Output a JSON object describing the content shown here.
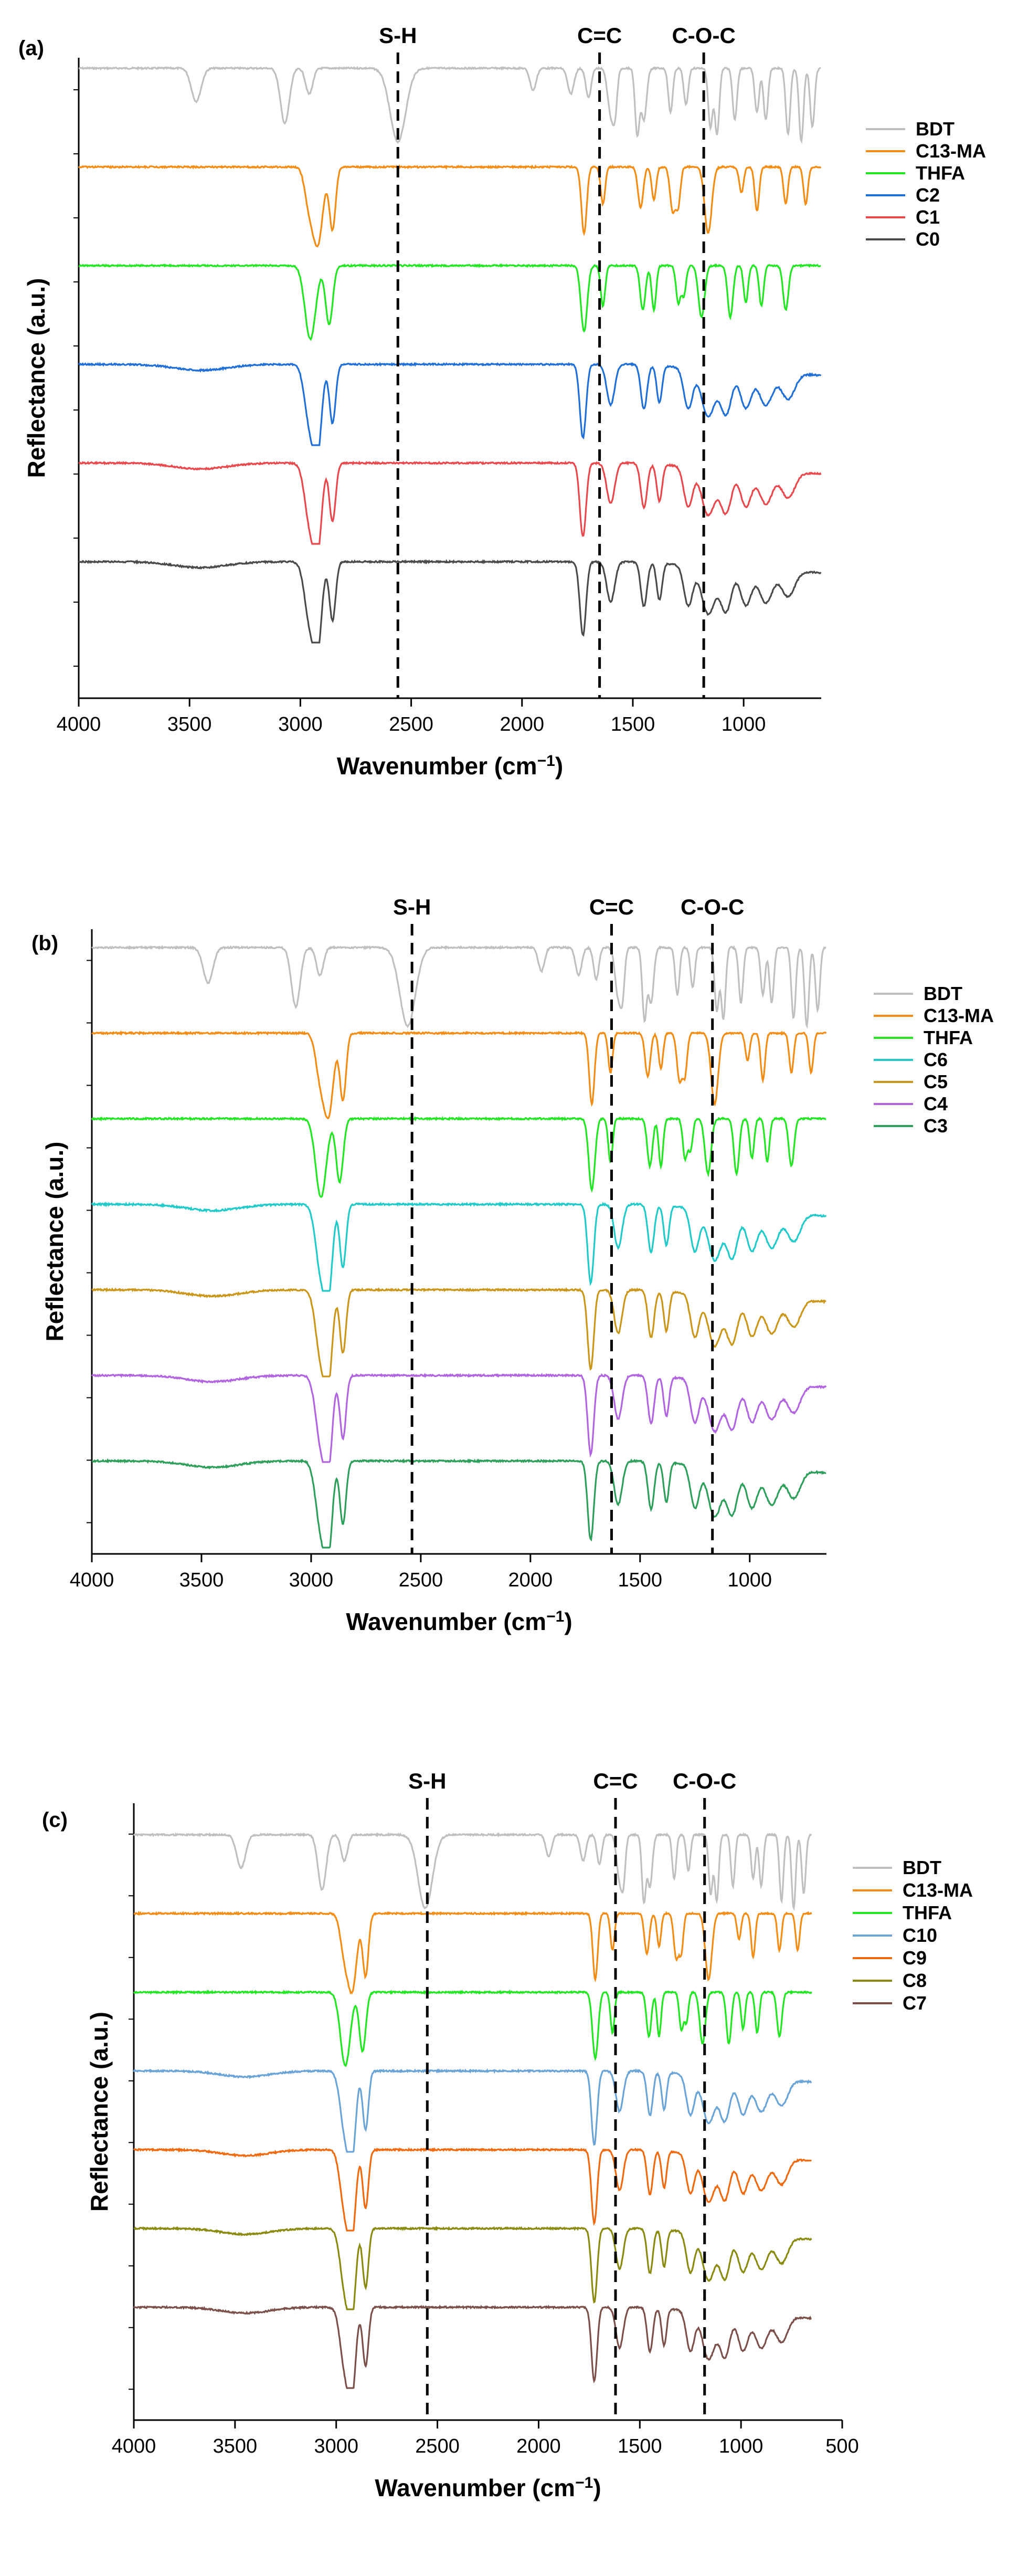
{
  "figure": {
    "description_free": true
  },
  "chart_data": [
    {
      "type": "line",
      "panel_label": "(a)",
      "xlabel": "Wavenumber (cm",
      "xlabel_sup": "−1",
      "xlabel_close": ")",
      "ylabel": "Reflectance (a.u.)",
      "xlim": [
        4000,
        650
      ],
      "xticks": [
        4000,
        3500,
        3000,
        2500,
        2000,
        1500,
        1000
      ],
      "markers": [
        {
          "label": "S-H",
          "x": 2560
        },
        {
          "label": "C=C",
          "x": 1650
        },
        {
          "label": "C-O-C",
          "x": 1180
        }
      ],
      "legend": [
        "BDT",
        "C13-MA",
        "THFA",
        "C2",
        "C1",
        "C0"
      ],
      "series": [
        {
          "name": "BDT",
          "color": "#bfbfbf",
          "kind": "BDT"
        },
        {
          "name": "C13-MA",
          "color": "#f28c14",
          "kind": "C13MA"
        },
        {
          "name": "THFA",
          "color": "#22e622",
          "kind": "THFA"
        },
        {
          "name": "C2",
          "color": "#1f6fd6",
          "kind": "poly"
        },
        {
          "name": "C1",
          "color": "#e8474b",
          "kind": "poly"
        },
        {
          "name": "C0",
          "color": "#4a4a4a",
          "kind": "poly"
        }
      ]
    },
    {
      "type": "line",
      "panel_label": "(b)",
      "xlabel": "Wavenumber (cm",
      "xlabel_sup": "−1",
      "xlabel_close": ")",
      "ylabel": "Reflectance (a.u.)",
      "xlim": [
        4000,
        650
      ],
      "xticks": [
        4000,
        3500,
        3000,
        2500,
        2000,
        1500,
        1000
      ],
      "markers": [
        {
          "label": "S-H",
          "x": 2540
        },
        {
          "label": "C=C",
          "x": 1630
        },
        {
          "label": "C-O-C",
          "x": 1170
        }
      ],
      "legend": [
        "BDT",
        "C13-MA",
        "THFA",
        "C6",
        "C5",
        "C4",
        "C3"
      ],
      "series": [
        {
          "name": "BDT",
          "color": "#bfbfbf",
          "kind": "BDT"
        },
        {
          "name": "C13-MA",
          "color": "#f28c14",
          "kind": "C13MA"
        },
        {
          "name": "THFA",
          "color": "#22e622",
          "kind": "THFA"
        },
        {
          "name": "C6",
          "color": "#22c9c9",
          "kind": "poly"
        },
        {
          "name": "C5",
          "color": "#c9961a",
          "kind": "poly"
        },
        {
          "name": "C4",
          "color": "#b064e0",
          "kind": "poly"
        },
        {
          "name": "C3",
          "color": "#2e9e5b",
          "kind": "poly"
        }
      ]
    },
    {
      "type": "line",
      "panel_label": "(c)",
      "xlabel": "Wavenumber (cm",
      "xlabel_sup": "−1",
      "xlabel_close": ")",
      "ylabel": "Reflectance (a.u.)",
      "xlim": [
        4000,
        500
      ],
      "xticks": [
        4000,
        3500,
        3000,
        2500,
        2000,
        1500,
        1000,
        500
      ],
      "markers": [
        {
          "label": "S-H",
          "x": 2550
        },
        {
          "label": "C=C",
          "x": 1620
        },
        {
          "label": "C-O-C",
          "x": 1180
        }
      ],
      "legend": [
        "BDT",
        "C13-MA",
        "THFA",
        "C10",
        "C9",
        "C8",
        "C7"
      ],
      "series": [
        {
          "name": "BDT",
          "color": "#bfbfbf",
          "kind": "BDT"
        },
        {
          "name": "C13-MA",
          "color": "#f28c14",
          "kind": "C13MA"
        },
        {
          "name": "THFA",
          "color": "#22e622",
          "kind": "THFA"
        },
        {
          "name": "C10",
          "color": "#6aa3d5",
          "kind": "poly"
        },
        {
          "name": "C9",
          "color": "#ef6a0f",
          "kind": "poly"
        },
        {
          "name": "C8",
          "color": "#8a8a10",
          "kind": "poly"
        },
        {
          "name": "C7",
          "color": "#7b4f4a",
          "kind": "poly"
        }
      ]
    }
  ]
}
